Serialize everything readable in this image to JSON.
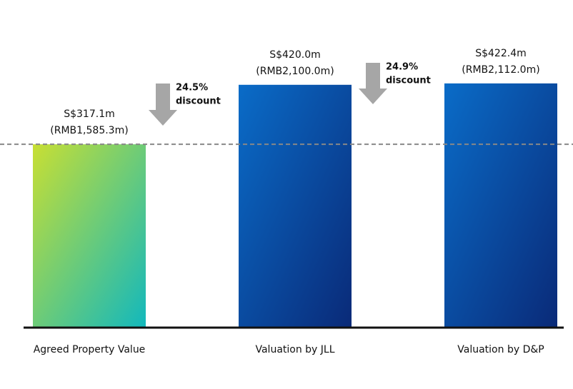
{
  "chart_data": {
    "type": "bar",
    "categories": [
      "Agreed Property Value",
      "Valuation by JLL",
      "Valuation by D&P"
    ],
    "values": [
      317.1,
      420.0,
      422.4
    ],
    "value_labels": [
      "S$317.1m",
      "S$420.0m",
      "S$422.4m"
    ],
    "secondary_labels": [
      "(RMB1,585.3m)",
      "(RMB2,100.0m)",
      "(RMB2,112.0m)"
    ],
    "gradients": [
      [
        "#c8df33",
        "#12b8bd"
      ],
      [
        "#0a6cc8",
        "#0a2a78"
      ],
      [
        "#0a6cc8",
        "#0a2a78"
      ]
    ],
    "ylim": [
      0,
      500
    ],
    "reference_line": 317.1,
    "annotations": [
      {
        "lines": [
          "24.5%",
          "discount"
        ]
      },
      {
        "lines": [
          "24.9%",
          "discount"
        ]
      }
    ]
  }
}
